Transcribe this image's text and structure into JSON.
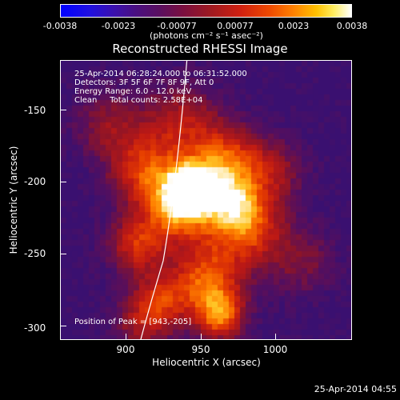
{
  "colorbar": {
    "ticks": [
      "-0.0038",
      "-0.0023",
      "-0.00077",
      "0.00077",
      "0.0023",
      "0.0038"
    ],
    "units": "(photons cm⁻² s⁻¹ asec⁻²)"
  },
  "title": "Reconstructed RHESSI Image",
  "info": {
    "time_range": "25-Apr-2014 06:28:24.000 to 06:31:52.000",
    "detectors": "Detectors: 3F 5F 6F 7F 8F 9F, Att 0",
    "energy": "Energy Range: 6.0 - 12.0 keV",
    "clean": "Clean     Total counts: 2.58E+04",
    "peak": "Position of Peak = [943,-205]"
  },
  "axes": {
    "xlabel": "Heliocentric X (arcsec)",
    "ylabel": "Heliocentric Y (arcsec)",
    "xticks": [
      "900",
      "950",
      "1000"
    ],
    "yticks": [
      "-150",
      "-200",
      "-250",
      "-300"
    ]
  },
  "timestamp": "25-Apr-2014 04:55",
  "colors": {
    "background": "#000000",
    "low": "#3a1070",
    "peak": "#ffffff",
    "limb_line": "#ffffff"
  },
  "image_features": {
    "peak_position_arcsec": [
      943,
      -205
    ],
    "x_range_arcsec": [
      858,
      1046
    ],
    "y_range_arcsec": [
      -308,
      -128
    ]
  }
}
